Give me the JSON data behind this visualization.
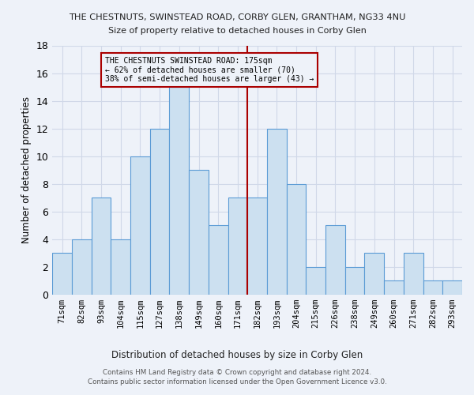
{
  "title": "THE CHESTNUTS, SWINSTEAD ROAD, CORBY GLEN, GRANTHAM, NG33 4NU",
  "subtitle": "Size of property relative to detached houses in Corby Glen",
  "xlabel": "Distribution of detached houses by size in Corby Glen",
  "ylabel": "Number of detached properties",
  "footer1": "Contains HM Land Registry data © Crown copyright and database right 2024.",
  "footer2": "Contains public sector information licensed under the Open Government Licence v3.0.",
  "bin_labels": [
    "71sqm",
    "82sqm",
    "93sqm",
    "104sqm",
    "115sqm",
    "127sqm",
    "138sqm",
    "149sqm",
    "160sqm",
    "171sqm",
    "182sqm",
    "193sqm",
    "204sqm",
    "215sqm",
    "226sqm",
    "238sqm",
    "249sqm",
    "260sqm",
    "271sqm",
    "282sqm",
    "293sqm"
  ],
  "values": [
    3,
    4,
    7,
    4,
    10,
    12,
    15,
    9,
    5,
    7,
    7,
    12,
    8,
    2,
    5,
    2,
    3,
    1,
    3,
    1,
    1
  ],
  "bar_color": "#cce0f0",
  "bar_edgecolor": "#5b9bd5",
  "grid_color": "#d0d8e8",
  "vline_x": 9.5,
  "vline_color": "#aa0000",
  "annotation_text": "THE CHESTNUTS SWINSTEAD ROAD: 175sqm\n← 62% of detached houses are smaller (70)\n38% of semi-detached houses are larger (43) →",
  "annotation_box_color": "#aa0000",
  "ylim": [
    0,
    18
  ],
  "yticks": [
    0,
    2,
    4,
    6,
    8,
    10,
    12,
    14,
    16,
    18
  ],
  "background_color": "#eef2f9"
}
